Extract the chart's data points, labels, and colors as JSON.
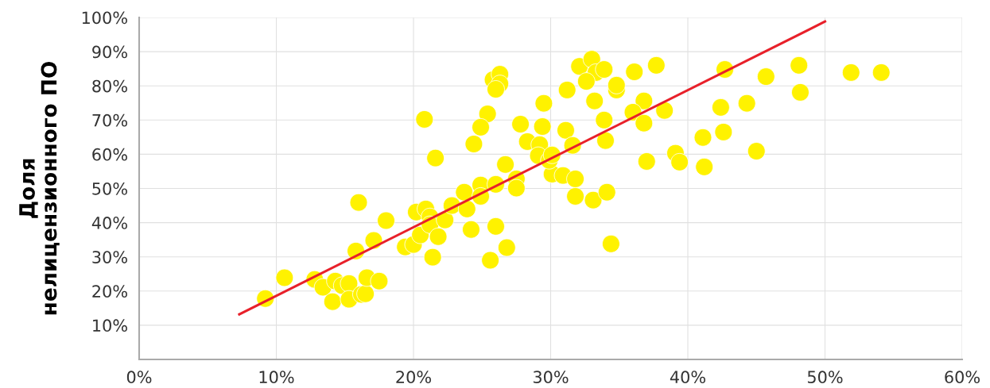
{
  "chart_data": {
    "type": "scatter",
    "ylabel": "Доля\nнелицензионного ПО",
    "xlim": [
      0,
      60
    ],
    "ylim": [
      0,
      100
    ],
    "grid": true,
    "marker": "circle",
    "xticks": [
      {
        "value": 0,
        "label": "0%"
      },
      {
        "value": 10,
        "label": "10%"
      },
      {
        "value": 20,
        "label": "20%"
      },
      {
        "value": 30,
        "label": "30%"
      },
      {
        "value": 40,
        "label": "40%"
      },
      {
        "value": 50,
        "label": "50%"
      },
      {
        "value": 60,
        "label": "60%"
      }
    ],
    "yticks": [
      {
        "value": 10,
        "label": "10%"
      },
      {
        "value": 20,
        "label": "20%"
      },
      {
        "value": 30,
        "label": "30%"
      },
      {
        "value": 40,
        "label": "40%"
      },
      {
        "value": 50,
        "label": "50%"
      },
      {
        "value": 60,
        "label": "60%"
      },
      {
        "value": 70,
        "label": "70%"
      },
      {
        "value": 80,
        "label": "80%"
      },
      {
        "value": 90,
        "label": "90%"
      },
      {
        "value": 100,
        "label": "100%"
      }
    ],
    "series": [
      {
        "color": "#fff200",
        "x": [
          9.2,
          10.6,
          12.8,
          13.4,
          14.1,
          14.3,
          14.8,
          15.3,
          15.3,
          16.2,
          16.5,
          16.6,
          17.5,
          15.8,
          17.1,
          18.0,
          16.0,
          19.4,
          20.0,
          20.5,
          20.2,
          20.9,
          21.2,
          21.2,
          21.8,
          21.4,
          22.3,
          22.8,
          23.7,
          23.9,
          24.2,
          20.8,
          21.6,
          24.9,
          24.9,
          26.0,
          25.6,
          26.0,
          26.8,
          26.7,
          27.5,
          27.5,
          27.8,
          28.3,
          29.2,
          29.1,
          30.1,
          29.9,
          30.1,
          29.4,
          29.5,
          30.9,
          31.8,
          31.8,
          33.1,
          34.1,
          34.4,
          31.1,
          31.6,
          33.9,
          34.0,
          37.0,
          39.1,
          39.4,
          38.3,
          36.8,
          36.0,
          36.8,
          33.2,
          31.2,
          34.8,
          34.8,
          36.1,
          37.7,
          32.1,
          33.0,
          33.3,
          33.9,
          32.6,
          25.8,
          26.3,
          26.3,
          26.0,
          25.4,
          24.9,
          24.4,
          41.2,
          41.1,
          42.6,
          42.4,
          44.3,
          42.7,
          45.7,
          48.1,
          48.2,
          45.0,
          51.9,
          54.1
        ],
        "values": [
          17.8,
          23.9,
          23.4,
          21.1,
          16.9,
          22.9,
          21.6,
          22.2,
          17.6,
          19.0,
          19.2,
          23.9,
          22.9,
          31.7,
          34.8,
          40.6,
          45.9,
          32.9,
          33.6,
          36.4,
          43.1,
          44.0,
          41.7,
          39.4,
          35.9,
          29.9,
          40.8,
          45.0,
          48.9,
          44.0,
          38.0,
          70.2,
          58.9,
          51.0,
          47.7,
          51.2,
          29.0,
          38.9,
          32.7,
          57.0,
          52.8,
          50.1,
          68.8,
          63.7,
          62.8,
          59.6,
          54.2,
          58.2,
          59.8,
          68.1,
          74.9,
          53.8,
          52.8,
          47.7,
          46.6,
          48.9,
          33.8,
          67.0,
          62.6,
          70.0,
          64.0,
          57.9,
          60.3,
          57.7,
          72.8,
          75.6,
          72.3,
          69.1,
          75.6,
          78.8,
          78.8,
          80.2,
          84.1,
          86.0,
          85.7,
          87.8,
          83.9,
          84.8,
          81.3,
          81.8,
          83.4,
          80.6,
          79.0,
          71.8,
          67.9,
          63.0,
          56.3,
          64.9,
          66.5,
          73.7,
          74.9,
          84.8,
          82.7,
          86.0,
          78.1,
          60.9,
          83.9,
          83.9
        ]
      },
      {
        "type": "line",
        "color": "#e8202a",
        "marker": "none",
        "x": [
          7.3,
          50
        ],
        "values": [
          13.2,
          98.8
        ]
      }
    ]
  }
}
